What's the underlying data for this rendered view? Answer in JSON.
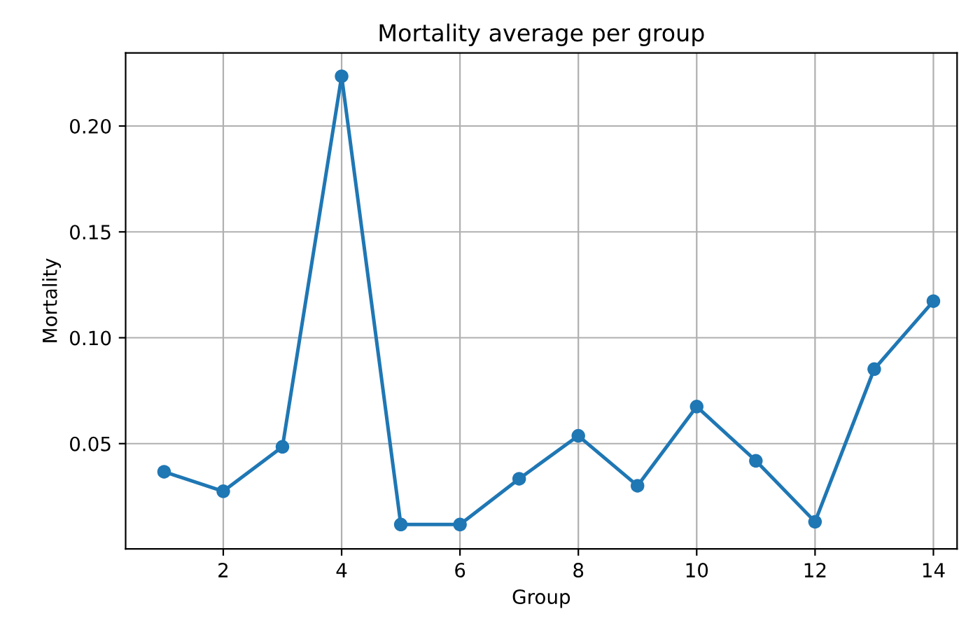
{
  "chart_data": {
    "type": "line",
    "title": "Mortality average per group",
    "xlabel": "Group",
    "ylabel": "Mortality",
    "x": [
      1,
      2,
      3,
      4,
      5,
      6,
      7,
      8,
      9,
      10,
      11,
      12,
      13,
      14
    ],
    "series": [
      {
        "color": "#1f77b4",
        "values": [
          0.0367,
          0.0275,
          0.0485,
          0.2235,
          0.0118,
          0.0118,
          0.0334,
          0.0537,
          0.0301,
          0.0675,
          0.0419,
          0.0131,
          0.0852,
          0.1173
        ]
      }
    ],
    "xlim": [
      0.35,
      14.4
    ],
    "xticks": [
      2,
      4,
      6,
      8,
      10,
      12,
      14
    ],
    "ylim": [
      0.0003,
      0.2345
    ],
    "yticks": [
      {
        "value": 0.05,
        "label": "0.05"
      },
      {
        "value": 0.1,
        "label": "0.10"
      },
      {
        "value": 0.15,
        "label": "0.15"
      },
      {
        "value": 0.2,
        "label": "0.20"
      }
    ],
    "grid": true,
    "marker": "circle",
    "line_style": "solid"
  }
}
